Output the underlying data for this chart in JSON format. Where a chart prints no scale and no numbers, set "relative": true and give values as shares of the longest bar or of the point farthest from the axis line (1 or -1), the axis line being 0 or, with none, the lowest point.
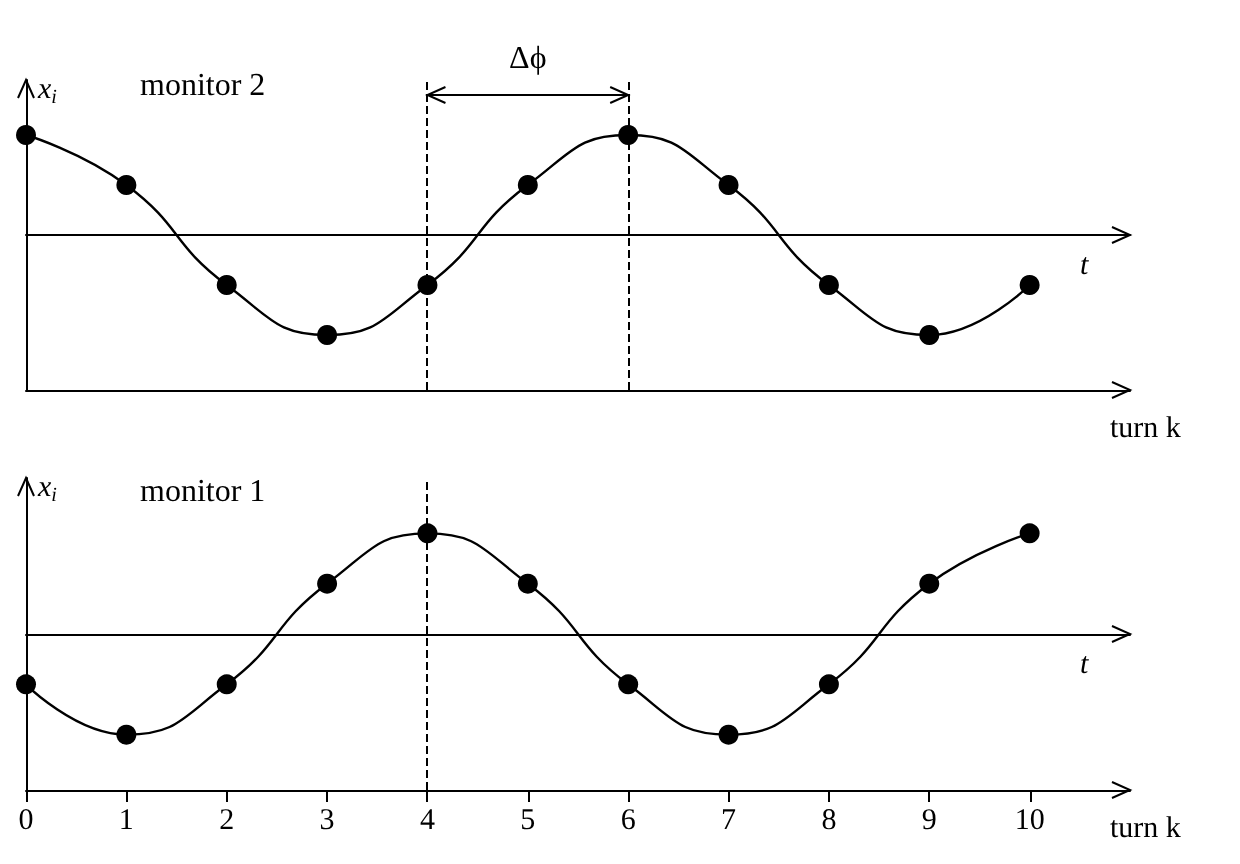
{
  "chart_data": [
    {
      "type": "line",
      "title": "monitor 2",
      "ylabel": "x$_{i}$",
      "xlabel": "turn k",
      "annotations": [
        "t",
        "Δϕ"
      ],
      "relative": true,
      "marker": "circle",
      "line_style": "solid",
      "x": [
        0,
        1,
        2,
        3,
        4,
        5,
        6,
        7,
        8,
        9,
        10
      ],
      "series": [
        {
          "color": "#000000",
          "values": [
            1,
            0.5,
            -0.5,
            -1,
            -0.5,
            0.5,
            1,
            0.5,
            -0.5,
            -1,
            -0.5
          ]
        }
      ],
      "xlim": [
        0,
        11
      ],
      "tick_labels": false,
      "grid": false,
      "ref_lines": [
        {
          "axis": "x",
          "value": 4,
          "line_style": "dashed"
        },
        {
          "axis": "x",
          "value": 6,
          "line_style": "dashed"
        }
      ]
    },
    {
      "type": "line",
      "title": "monitor 1",
      "ylabel": "x$_{i}$",
      "xlabel": "turn k",
      "annotations": [
        "t"
      ],
      "relative": true,
      "marker": "circle",
      "line_style": "solid",
      "x": [
        0,
        1,
        2,
        3,
        4,
        5,
        6,
        7,
        8,
        9,
        10
      ],
      "series": [
        {
          "color": "#000000",
          "values": [
            -0.5,
            -1,
            -0.5,
            0.5,
            1,
            0.5,
            -0.5,
            -1,
            -0.5,
            0.5,
            1
          ]
        }
      ],
      "xlim": [
        0,
        11
      ],
      "xticks": [
        0,
        1,
        2,
        3,
        4,
        5,
        6,
        7,
        8,
        9,
        10
      ],
      "tick_labels": "x",
      "grid": false,
      "ref_lines": [
        {
          "axis": "x",
          "value": 4,
          "line_style": "dashed"
        }
      ]
    }
  ]
}
